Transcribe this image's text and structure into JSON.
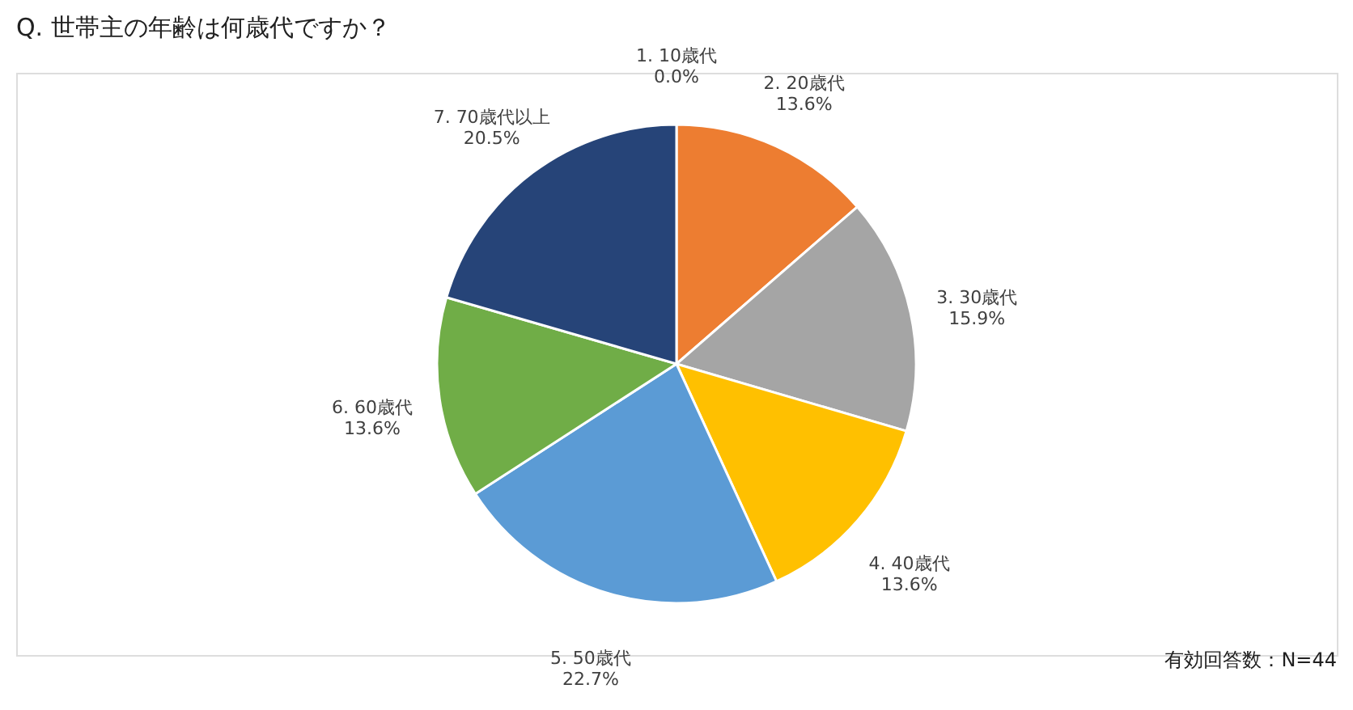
{
  "chart_data": {
    "type": "pie",
    "title": "Q. 世帯主の年齢は何歳代ですか？",
    "categories": [
      "1. 10歳代",
      "2. 20歳代",
      "3. 30歳代",
      "4. 40歳代",
      "5. 50歳代",
      "6. 60歳代",
      "7. 70歳代以上"
    ],
    "values": [
      0.0,
      13.6,
      15.9,
      13.6,
      22.7,
      13.6,
      20.5
    ],
    "colors": [
      "#4472c4",
      "#ed7d31",
      "#a5a5a5",
      "#ffc000",
      "#5b9bd5",
      "#70ad47",
      "#264478"
    ],
    "value_labels": [
      "0.0%",
      "13.6%",
      "15.9%",
      "13.6%",
      "22.7%",
      "13.6%",
      "20.5%"
    ],
    "annotations": [
      "有効回答数：N=44"
    ],
    "legend": false
  }
}
